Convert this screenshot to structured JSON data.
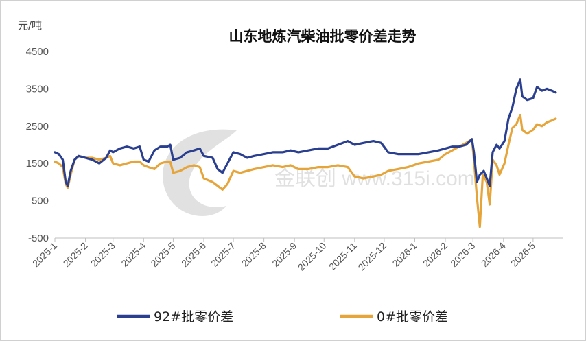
{
  "chart_data": {
    "type": "line",
    "title": "山东地炼汽柴油批零价差走势",
    "ylabel": "元/吨",
    "ylim": [
      -500,
      4500
    ],
    "yticks": [
      -500,
      500,
      1500,
      2500,
      3500,
      4500
    ],
    "xlim": [
      "2025-01-01",
      "2026-05-31"
    ],
    "xticks": [
      "2025-1",
      "2025-2",
      "2025-3",
      "2025-4",
      "2025-5",
      "2025-6",
      "2025-7",
      "2025-8",
      "2025-9",
      "2025-10",
      "2025-11",
      "2025-12",
      "2026-1",
      "2026-2",
      "2026-3",
      "2026-4",
      "2026-5"
    ],
    "legend": "bottom",
    "grid": false,
    "watermark": "金联创 www.315i.com",
    "series": [
      {
        "name": "92#批零价差",
        "color": "#2A3F8F",
        "points": [
          [
            "2025-01-01",
            1800
          ],
          [
            "2025-01-05",
            1750
          ],
          [
            "2025-01-09",
            1600
          ],
          [
            "2025-01-12",
            1000
          ],
          [
            "2025-01-14",
            900
          ],
          [
            "2025-01-17",
            1300
          ],
          [
            "2025-01-21",
            1600
          ],
          [
            "2025-01-25",
            1700
          ],
          [
            "2025-02-01",
            1650
          ],
          [
            "2025-02-08",
            1600
          ],
          [
            "2025-02-15",
            1500
          ],
          [
            "2025-02-22",
            1650
          ],
          [
            "2025-02-26",
            1850
          ],
          [
            "2025-03-01",
            1800
          ],
          [
            "2025-03-08",
            1900
          ],
          [
            "2025-03-15",
            1950
          ],
          [
            "2025-03-22",
            1900
          ],
          [
            "2025-03-28",
            1950
          ],
          [
            "2025-04-01",
            1600
          ],
          [
            "2025-04-06",
            1550
          ],
          [
            "2025-04-12",
            1850
          ],
          [
            "2025-04-18",
            1950
          ],
          [
            "2025-04-25",
            1950
          ],
          [
            "2025-04-28",
            2000
          ],
          [
            "2025-05-01",
            1600
          ],
          [
            "2025-05-08",
            1650
          ],
          [
            "2025-05-15",
            1800
          ],
          [
            "2025-05-22",
            1850
          ],
          [
            "2025-05-28",
            1900
          ],
          [
            "2025-06-01",
            1700
          ],
          [
            "2025-06-10",
            1650
          ],
          [
            "2025-06-15",
            1350
          ],
          [
            "2025-06-20",
            1250
          ],
          [
            "2025-06-25",
            1500
          ],
          [
            "2025-07-01",
            1800
          ],
          [
            "2025-07-08",
            1750
          ],
          [
            "2025-07-15",
            1650
          ],
          [
            "2025-07-22",
            1700
          ],
          [
            "2025-08-01",
            1750
          ],
          [
            "2025-08-10",
            1800
          ],
          [
            "2025-08-20",
            1800
          ],
          [
            "2025-08-28",
            1850
          ],
          [
            "2025-09-05",
            1800
          ],
          [
            "2025-09-15",
            1850
          ],
          [
            "2025-09-25",
            1900
          ],
          [
            "2025-10-05",
            1900
          ],
          [
            "2025-10-15",
            2000
          ],
          [
            "2025-10-25",
            2100
          ],
          [
            "2025-11-01",
            2000
          ],
          [
            "2025-11-10",
            2050
          ],
          [
            "2025-11-20",
            2100
          ],
          [
            "2025-11-28",
            2050
          ],
          [
            "2025-12-05",
            1800
          ],
          [
            "2025-12-15",
            1750
          ],
          [
            "2025-12-25",
            1750
          ],
          [
            "2026-01-05",
            1750
          ],
          [
            "2026-01-15",
            1800
          ],
          [
            "2026-01-25",
            1850
          ],
          [
            "2026-02-01",
            1900
          ],
          [
            "2026-02-08",
            1950
          ],
          [
            "2026-02-15",
            1950
          ],
          [
            "2026-02-22",
            2000
          ],
          [
            "2026-02-28",
            2150
          ],
          [
            "2026-03-02",
            1800
          ],
          [
            "2026-03-05",
            1000
          ],
          [
            "2026-03-08",
            1200
          ],
          [
            "2026-03-12",
            1300
          ],
          [
            "2026-03-18",
            900
          ],
          [
            "2026-03-21",
            1800
          ],
          [
            "2026-03-25",
            2000
          ],
          [
            "2026-03-28",
            1900
          ],
          [
            "2026-04-02",
            2100
          ],
          [
            "2026-04-06",
            2700
          ],
          [
            "2026-04-10",
            3000
          ],
          [
            "2026-04-14",
            3500
          ],
          [
            "2026-04-18",
            3750
          ],
          [
            "2026-04-20",
            3300
          ],
          [
            "2026-04-25",
            3200
          ],
          [
            "2026-05-01",
            3250
          ],
          [
            "2026-05-05",
            3550
          ],
          [
            "2026-05-10",
            3450
          ],
          [
            "2026-05-15",
            3500
          ],
          [
            "2026-05-20",
            3450
          ],
          [
            "2026-05-24",
            3400
          ]
        ]
      },
      {
        "name": "0#批零价差",
        "color": "#E5A53A",
        "points": [
          [
            "2025-01-01",
            1550
          ],
          [
            "2025-01-05",
            1500
          ],
          [
            "2025-01-09",
            1400
          ],
          [
            "2025-01-12",
            950
          ],
          [
            "2025-01-14",
            850
          ],
          [
            "2025-01-17",
            1200
          ],
          [
            "2025-01-21",
            1600
          ],
          [
            "2025-01-25",
            1700
          ],
          [
            "2025-02-01",
            1650
          ],
          [
            "2025-02-08",
            1650
          ],
          [
            "2025-02-15",
            1600
          ],
          [
            "2025-02-22",
            1650
          ],
          [
            "2025-02-26",
            1700
          ],
          [
            "2025-03-01",
            1500
          ],
          [
            "2025-03-08",
            1450
          ],
          [
            "2025-03-15",
            1500
          ],
          [
            "2025-03-22",
            1550
          ],
          [
            "2025-03-28",
            1550
          ],
          [
            "2025-04-01",
            1450
          ],
          [
            "2025-04-06",
            1400
          ],
          [
            "2025-04-12",
            1350
          ],
          [
            "2025-04-18",
            1500
          ],
          [
            "2025-04-25",
            1550
          ],
          [
            "2025-04-28",
            1550
          ],
          [
            "2025-05-01",
            1250
          ],
          [
            "2025-05-08",
            1300
          ],
          [
            "2025-05-15",
            1400
          ],
          [
            "2025-05-22",
            1450
          ],
          [
            "2025-05-28",
            1400
          ],
          [
            "2025-06-01",
            1100
          ],
          [
            "2025-06-10",
            1000
          ],
          [
            "2025-06-15",
            900
          ],
          [
            "2025-06-20",
            800
          ],
          [
            "2025-06-25",
            950
          ],
          [
            "2025-07-01",
            1300
          ],
          [
            "2025-07-08",
            1250
          ],
          [
            "2025-07-15",
            1300
          ],
          [
            "2025-07-22",
            1350
          ],
          [
            "2025-08-01",
            1400
          ],
          [
            "2025-08-10",
            1450
          ],
          [
            "2025-08-20",
            1400
          ],
          [
            "2025-08-28",
            1450
          ],
          [
            "2025-09-05",
            1350
          ],
          [
            "2025-09-15",
            1350
          ],
          [
            "2025-09-25",
            1400
          ],
          [
            "2025-10-05",
            1400
          ],
          [
            "2025-10-15",
            1450
          ],
          [
            "2025-10-25",
            1400
          ],
          [
            "2025-11-01",
            1150
          ],
          [
            "2025-11-10",
            1100
          ],
          [
            "2025-11-20",
            1150
          ],
          [
            "2025-11-28",
            1200
          ],
          [
            "2025-12-05",
            1300
          ],
          [
            "2025-12-15",
            1350
          ],
          [
            "2025-12-25",
            1400
          ],
          [
            "2026-01-05",
            1500
          ],
          [
            "2026-01-15",
            1550
          ],
          [
            "2026-01-25",
            1600
          ],
          [
            "2026-02-01",
            1750
          ],
          [
            "2026-02-08",
            1850
          ],
          [
            "2026-02-15",
            1950
          ],
          [
            "2026-02-22",
            2050
          ],
          [
            "2026-02-28",
            2150
          ],
          [
            "2026-03-02",
            1600
          ],
          [
            "2026-03-05",
            600
          ],
          [
            "2026-03-08",
            -200
          ],
          [
            "2026-03-11",
            1200
          ],
          [
            "2026-03-15",
            1000
          ],
          [
            "2026-03-18",
            400
          ],
          [
            "2026-03-21",
            1600
          ],
          [
            "2026-03-25",
            1450
          ],
          [
            "2026-03-28",
            1200
          ],
          [
            "2026-04-02",
            1500
          ],
          [
            "2026-04-06",
            2000
          ],
          [
            "2026-04-10",
            2450
          ],
          [
            "2026-04-14",
            2550
          ],
          [
            "2026-04-18",
            2800
          ],
          [
            "2026-04-20",
            2400
          ],
          [
            "2026-04-25",
            2300
          ],
          [
            "2026-05-01",
            2400
          ],
          [
            "2026-05-05",
            2550
          ],
          [
            "2026-05-10",
            2500
          ],
          [
            "2026-05-15",
            2600
          ],
          [
            "2026-05-20",
            2650
          ],
          [
            "2026-05-24",
            2700
          ]
        ]
      }
    ]
  }
}
